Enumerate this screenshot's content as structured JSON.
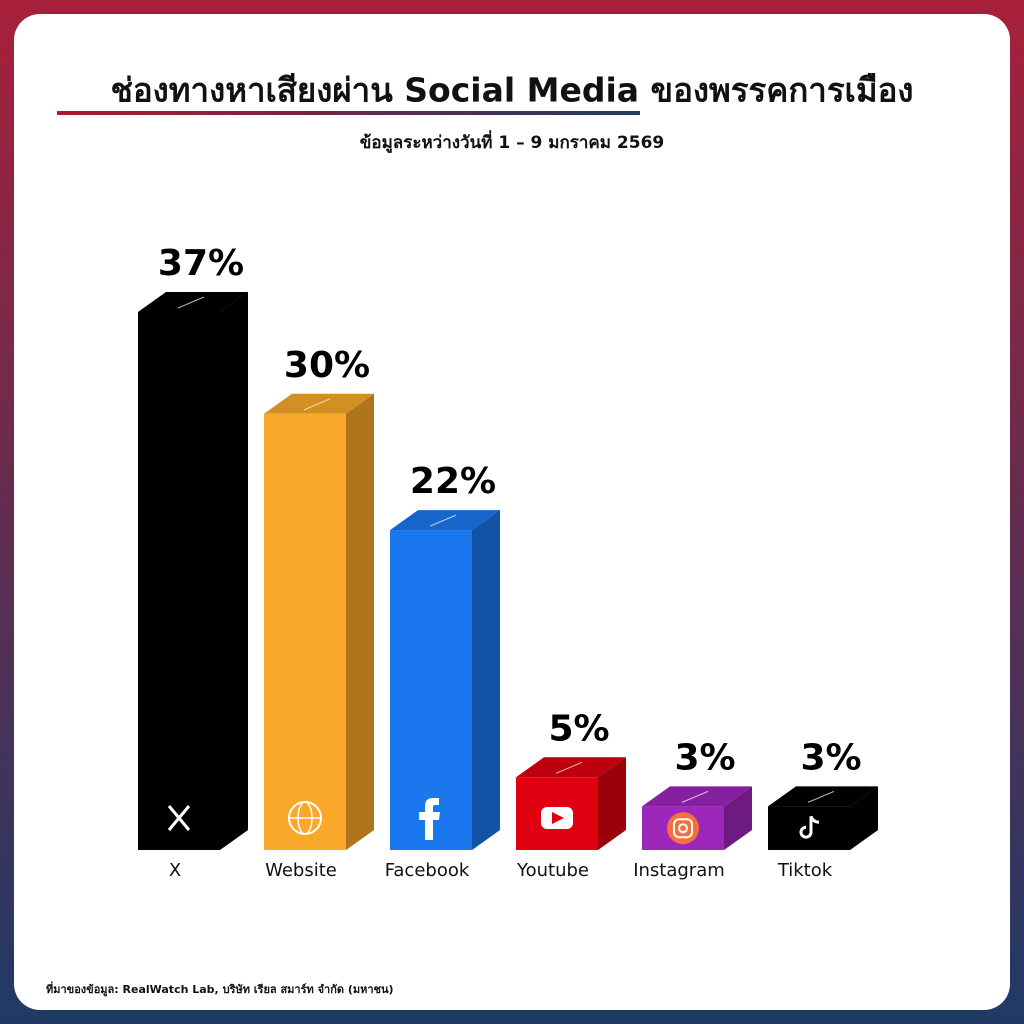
{
  "chart_data": {
    "type": "bar3d",
    "title": "ช่องทางหาเสียงผ่าน Social Media ของพรรคการเมือง",
    "subtitle": "ข้อมูลระหว่างวันที่ 1 – 9 มกราคม 2569",
    "source": "ที่มาของข้อมูล: RealWatch Lab, บริษัท เรียล สมาร์ท จำกัด (มหาชน)",
    "categories": [
      "X",
      "Website",
      "Facebook",
      "Youtube",
      "Instagram",
      "Tiktok"
    ],
    "values": [
      37,
      30,
      22,
      5,
      3,
      3
    ],
    "value_labels": [
      "37%",
      "30%",
      "22%",
      "5%",
      "3%",
      "3%"
    ],
    "colors": [
      "#000000",
      "#f9a82a",
      "#1a77ee",
      "#e0000f",
      "#9d27bb",
      "#000000"
    ]
  }
}
